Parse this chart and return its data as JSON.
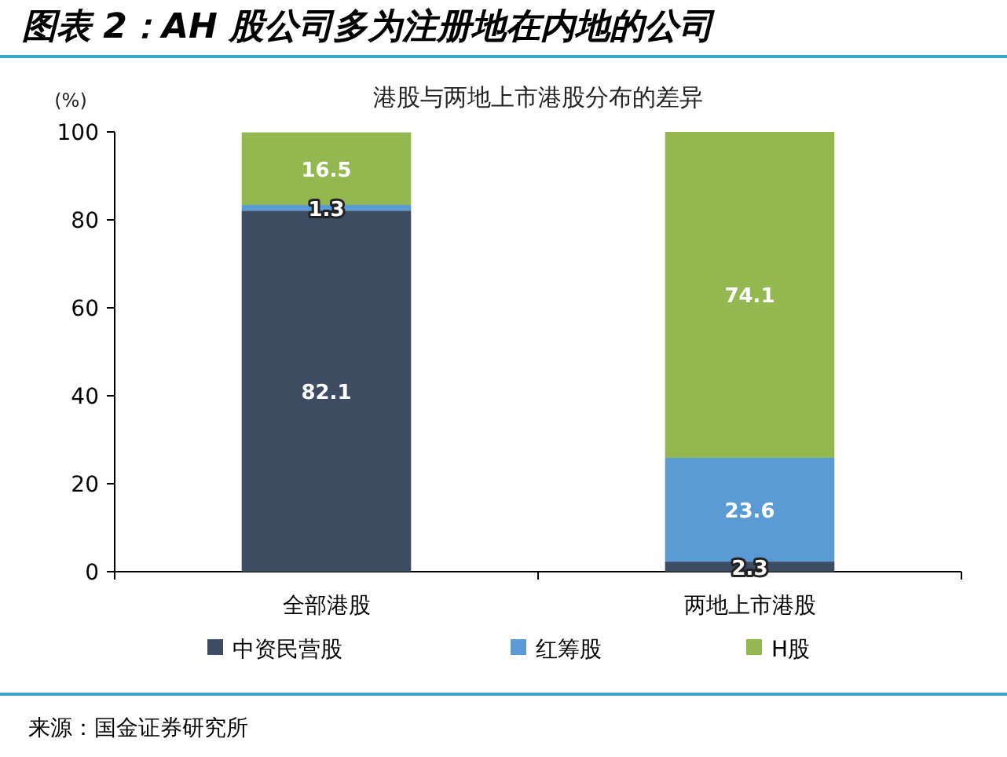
{
  "chart_data": {
    "type": "bar",
    "stacked": true,
    "title": "图表 2：AH 股公司多为注册地在内地的公司",
    "subtitle": "港股与两地上市港股分布的差异",
    "ylabel": "(%)",
    "categories": [
      "全部港股",
      "两地上市港股"
    ],
    "series": [
      {
        "name": "中资民营股",
        "color": "#3d4b63",
        "values": [
          82.1,
          2.3
        ]
      },
      {
        "name": "红筹股",
        "color": "#5b9bd5",
        "values": [
          1.3,
          23.6
        ]
      },
      {
        "name": "H股",
        "color": "#92b84f",
        "values": [
          16.5,
          74.1
        ]
      }
    ],
    "ylim": [
      0,
      100
    ],
    "yticks": [
      0,
      20,
      40,
      60,
      80,
      100
    ],
    "data_labels": true,
    "legend": "bottom",
    "annotations": [
      "来源：国金证券研究所"
    ]
  }
}
